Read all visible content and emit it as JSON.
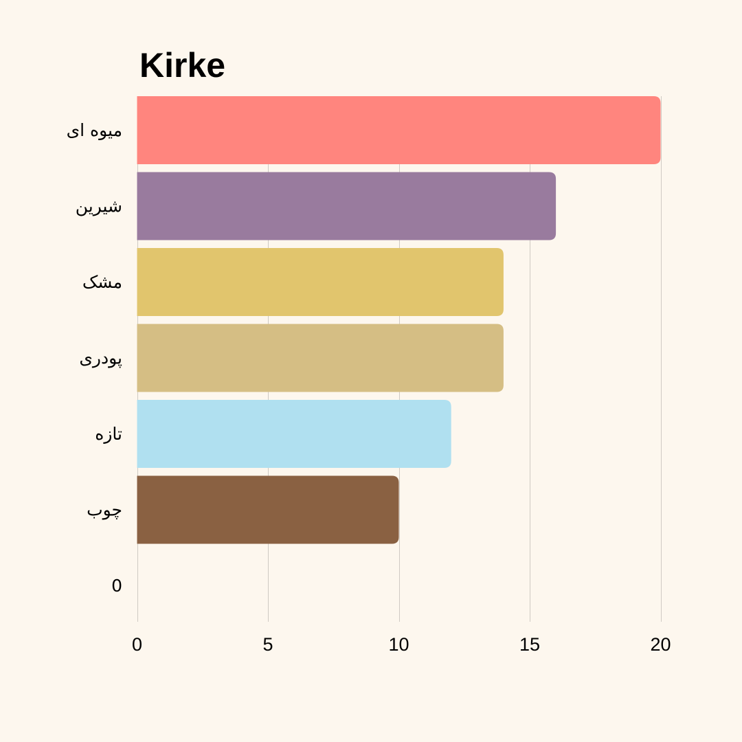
{
  "chart_data": {
    "type": "bar",
    "orientation": "horizontal",
    "title": "Kirke",
    "xlabel": "",
    "ylabel": "",
    "categories": [
      "میوه ای",
      "شیرین",
      "مشک",
      "پودری",
      "تازه",
      "چوب",
      "0"
    ],
    "values": [
      20,
      16,
      14,
      14,
      12,
      10,
      0
    ],
    "colors": [
      "#ff857e",
      "#997b9e",
      "#e1c56d",
      "#d5be84",
      "#b0e0f0",
      "#8a6142",
      "#000000"
    ],
    "xlim": [
      0,
      20
    ],
    "xticks": [
      0,
      5,
      10,
      15,
      20
    ],
    "grid": true,
    "legend": "none"
  },
  "background_color": "#fdf7ee"
}
